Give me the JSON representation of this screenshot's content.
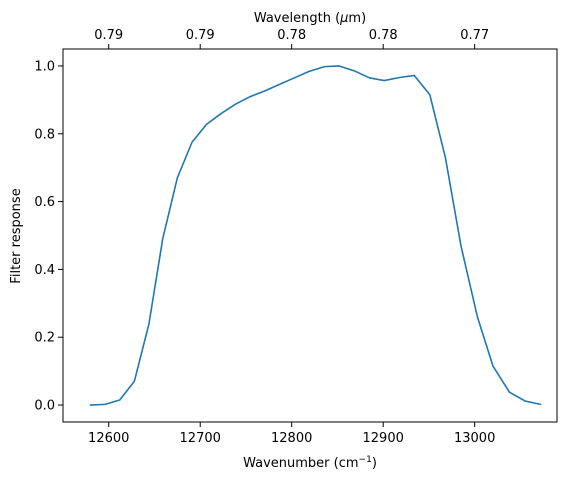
{
  "chart_data": {
    "type": "line",
    "xlabel_main": "Wavenumber (cm",
    "xlabel_sup": "−1",
    "xlabel_end": ")",
    "xlabel_top_main": "Wavelength (",
    "xlabel_top_mu": "μ",
    "xlabel_top_end": "m)",
    "ylabel": "Filter response",
    "xlim": [
      12550,
      13090
    ],
    "ylim": [
      -0.05,
      1.05
    ],
    "xticks": [
      12600,
      12700,
      12800,
      12900,
      13000
    ],
    "xtick_labels": [
      "12600",
      "12700",
      "12800",
      "12900",
      "13000"
    ],
    "yticks": [
      0.0,
      0.2,
      0.4,
      0.6,
      0.8,
      1.0
    ],
    "ytick_labels": [
      "0.0",
      "0.2",
      "0.4",
      "0.6",
      "0.8",
      "1.0"
    ],
    "top_ticks_x": [
      12600,
      12700,
      12800,
      12900,
      13000
    ],
    "top_tick_labels": [
      "0.79",
      "0.79",
      "0.78",
      "0.78",
      "0.77"
    ],
    "grid": false,
    "legend": "none",
    "series": [
      {
        "color": "#1f77b4",
        "x": [
          12580,
          12596,
          12612,
          12628,
          12644,
          12659,
          12675,
          12691,
          12707,
          12723,
          12739,
          12755,
          12771,
          12787,
          12803,
          12819,
          12836,
          12852,
          12868,
          12885,
          12901,
          12918,
          12934,
          12951,
          12968,
          12985,
          13003,
          13020,
          13038,
          13055,
          13072
        ],
        "y": [
          0.0,
          0.002,
          0.015,
          0.07,
          0.24,
          0.49,
          0.67,
          0.775,
          0.828,
          0.86,
          0.888,
          0.91,
          0.927,
          0.946,
          0.965,
          0.984,
          0.998,
          1.0,
          0.986,
          0.965,
          0.957,
          0.966,
          0.972,
          0.915,
          0.73,
          0.47,
          0.26,
          0.115,
          0.038,
          0.012,
          0.002
        ]
      }
    ]
  }
}
